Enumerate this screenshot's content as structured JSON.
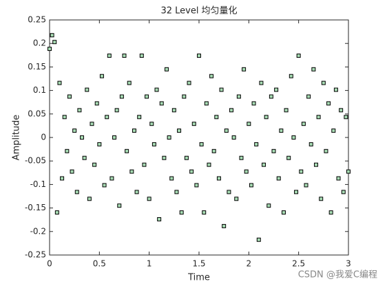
{
  "chart_data": {
    "type": "scatter",
    "title": "32 Level 均匀量化",
    "x_label": "Time",
    "y_label": "Amplitude",
    "watermark": "CSDN @我爱C编程",
    "x": [
      0,
      0.025,
      0.05,
      0.075,
      0.1,
      0.125,
      0.15,
      0.175,
      0.2,
      0.225,
      0.25,
      0.275,
      0.3,
      0.325,
      0.35,
      0.375,
      0.4,
      0.425,
      0.45,
      0.475,
      0.5,
      0.525,
      0.55,
      0.575,
      0.6,
      0.625,
      0.65,
      0.675,
      0.7,
      0.725,
      0.75,
      0.775,
      0.8,
      0.825,
      0.85,
      0.875,
      0.9,
      0.925,
      0.95,
      0.975,
      1,
      1.025,
      1.05,
      1.075,
      1.1,
      1.125,
      1.15,
      1.175,
      1.2,
      1.225,
      1.25,
      1.275,
      1.3,
      1.325,
      1.35,
      1.375,
      1.4,
      1.425,
      1.45,
      1.475,
      1.5,
      1.525,
      1.55,
      1.575,
      1.6,
      1.625,
      1.65,
      1.675,
      1.7,
      1.725,
      1.75,
      1.775,
      1.8,
      1.825,
      1.85,
      1.875,
      1.9,
      1.925,
      1.95,
      1.975,
      2,
      2.025,
      2.05,
      2.075,
      2.1,
      2.125,
      2.15,
      2.175,
      2.2,
      2.225,
      2.25,
      2.275,
      2.3,
      2.325,
      2.35,
      2.375,
      2.4,
      2.425,
      2.45,
      2.475,
      2.5,
      2.525,
      2.55,
      2.575,
      2.6,
      2.625,
      2.65,
      2.675,
      2.7,
      2.725,
      2.75,
      2.775,
      2.8,
      2.825,
      2.85,
      2.875,
      2.9,
      2.925,
      2.95,
      2.975,
      3
    ],
    "series": [
      {
        "color": "#a8dcb4",
        "values": [
          0.1885,
          0.2175,
          0.203,
          -0.1595,
          0.116,
          -0.087,
          0.0435,
          -0.029,
          0.087,
          -0.0725,
          0.0145,
          -0.116,
          0.058,
          0,
          -0.0435,
          0.1015,
          -0.1305,
          0.029,
          -0.058,
          0.0725,
          -0.0145,
          0.1305,
          -0.1015,
          0.0435,
          0.174,
          -0.087,
          0,
          0.058,
          -0.145,
          0.087,
          0.174,
          -0.029,
          0.116,
          -0.0725,
          0.0145,
          -0.116,
          0.0435,
          0.174,
          -0.058,
          0.087,
          -0.1305,
          0.029,
          -0.0145,
          0.1015,
          -0.174,
          0.0725,
          -0.0435,
          0.145,
          0,
          -0.087,
          0.058,
          -0.116,
          0.0145,
          -0.1595,
          0.087,
          -0.0435,
          0.116,
          -0.0725,
          0.029,
          -0.1015,
          0.174,
          -0.0145,
          -0.1595,
          0.0725,
          -0.058,
          0.1305,
          -0.029,
          0.0435,
          -0.087,
          0.1015,
          -0.1885,
          0.0145,
          -0.116,
          0.058,
          0,
          -0.1305,
          0.087,
          -0.0435,
          0.145,
          -0.0725,
          0.029,
          -0.1015,
          0.0725,
          -0.0145,
          -0.2175,
          0.116,
          -0.058,
          0.0435,
          -0.145,
          0.087,
          -0.029,
          0.1015,
          -0.087,
          0.0145,
          -0.1595,
          0.058,
          -0.0435,
          0.1305,
          0,
          -0.116,
          0.174,
          -0.0725,
          0.029,
          -0.1015,
          0.087,
          -0.0145,
          0.145,
          -0.058,
          0.0435,
          -0.1305,
          0.116,
          -0.029,
          0.0725,
          -0.1595,
          0.0145,
          0.1015,
          -0.087,
          0.058,
          -0.116,
          0.0435,
          -0.0725
        ]
      }
    ],
    "xlim": [
      0,
      3
    ],
    "xticks": [
      0,
      0.5,
      1,
      1.5,
      2,
      2.5,
      3
    ],
    "ylim": [
      -0.25,
      0.25
    ],
    "yticks": [
      -0.25,
      -0.2,
      -0.15,
      -0.1,
      -0.05,
      0,
      0.05,
      0.1,
      0.15,
      0.2,
      0.25
    ]
  }
}
